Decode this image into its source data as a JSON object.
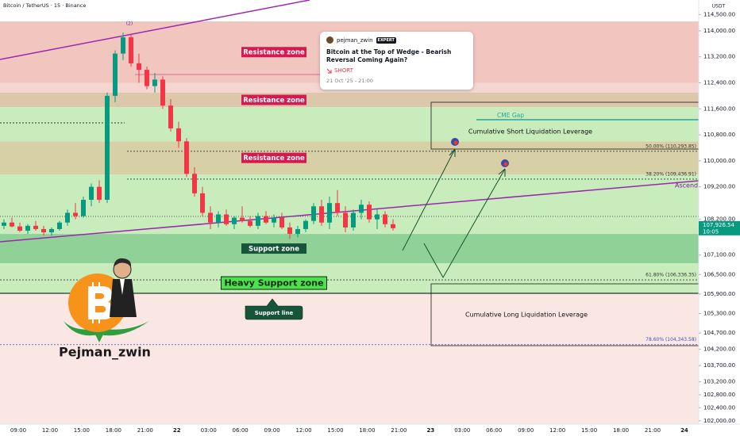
{
  "chart_data": {
    "type": "candlestick",
    "title": "Bitcoin / TetherUS · 15 · Binance",
    "currency": "USDT",
    "ylim": [
      101800,
      114900
    ],
    "yticks": [
      {
        "value": 114500,
        "label": "114,500.00"
      },
      {
        "value": 114000,
        "label": "114,000.00"
      },
      {
        "value": 113200,
        "label": "113,200.00"
      },
      {
        "value": 112400,
        "label": "112,400.00"
      },
      {
        "value": 111600,
        "label": "111,600.00"
      },
      {
        "value": 110800,
        "label": "110,800.00"
      },
      {
        "value": 110000,
        "label": "110,000.00"
      },
      {
        "value": 109200,
        "label": "109,200.00"
      },
      {
        "value": 108200,
        "label": "108,200.00"
      },
      {
        "value": 107100,
        "label": "107,100.00"
      },
      {
        "value": 106500,
        "label": "106,500.00"
      },
      {
        "value": 105900,
        "label": "105,900.00"
      },
      {
        "value": 105300,
        "label": "105,300.00"
      },
      {
        "value": 104700,
        "label": "104,700.00"
      },
      {
        "value": 104200,
        "label": "104,200.00"
      },
      {
        "value": 103700,
        "label": "103,700.00"
      },
      {
        "value": 103200,
        "label": "103,200.00"
      },
      {
        "value": 102800,
        "label": "102,800.00"
      },
      {
        "value": 102400,
        "label": "102,400.00"
      },
      {
        "value": 102000,
        "label": "102,000.00"
      }
    ],
    "time_labels": [
      "09:00",
      "12:00",
      "15:00",
      "18:00",
      "21:00",
      "22",
      "03:00",
      "06:00",
      "09:00",
      "12:00",
      "15:00",
      "18:00",
      "21:00",
      "23",
      "03:00",
      "06:00",
      "09:00",
      "12:00",
      "15:00",
      "18:00",
      "21:00",
      "24"
    ],
    "up_color": "#089981",
    "down_color": "#f23645",
    "candles": [
      [
        108000,
        108200,
        107900,
        108100
      ],
      [
        108100,
        108250,
        107950,
        107980
      ],
      [
        107980,
        108100,
        107800,
        107850
      ],
      [
        107850,
        108050,
        107750,
        108000
      ],
      [
        108000,
        108150,
        107850,
        107900
      ],
      [
        107900,
        108000,
        107700,
        107800
      ],
      [
        107800,
        107950,
        107700,
        107900
      ],
      [
        107900,
        108150,
        107850,
        108100
      ],
      [
        108100,
        108500,
        108000,
        108400
      ],
      [
        108400,
        108700,
        108200,
        108300
      ],
      [
        108300,
        108900,
        108250,
        108800
      ],
      [
        108800,
        109300,
        108600,
        109200
      ],
      [
        109200,
        109400,
        108700,
        108800
      ],
      [
        108800,
        112100,
        108700,
        112000
      ],
      [
        112000,
        113400,
        111800,
        113300
      ],
      [
        113300,
        113950,
        113100,
        113800
      ],
      [
        113800,
        113900,
        112900,
        113000
      ],
      [
        113000,
        113300,
        112400,
        112800
      ],
      [
        112800,
        112900,
        112200,
        112300
      ],
      [
        112300,
        112700,
        112100,
        112500
      ],
      [
        112500,
        112600,
        111600,
        111700
      ],
      [
        111700,
        111900,
        110900,
        111000
      ],
      [
        111000,
        111200,
        110400,
        110600
      ],
      [
        110600,
        110700,
        109500,
        109600
      ],
      [
        109600,
        109800,
        108900,
        109000
      ],
      [
        109000,
        109200,
        108300,
        108400
      ],
      [
        108400,
        108600,
        107900,
        108100
      ],
      [
        108100,
        108450,
        107950,
        108350
      ],
      [
        108350,
        108500,
        108000,
        108050
      ],
      [
        108050,
        108300,
        107900,
        108250
      ],
      [
        108250,
        108600,
        108100,
        108150
      ],
      [
        108150,
        108300,
        107950,
        108000
      ],
      [
        108000,
        108400,
        107900,
        108300
      ],
      [
        108300,
        108450,
        108050,
        108100
      ],
      [
        108100,
        108350,
        107950,
        108250
      ],
      [
        108250,
        108400,
        107900,
        107950
      ],
      [
        107950,
        108100,
        107600,
        107750
      ],
      [
        107750,
        108000,
        107650,
        107900
      ],
      [
        107900,
        108200,
        107800,
        108150
      ],
      [
        108150,
        108700,
        108050,
        108600
      ],
      [
        108600,
        108800,
        108000,
        108100
      ],
      [
        108100,
        108900,
        107900,
        108700
      ],
      [
        108700,
        109100,
        108300,
        108400
      ],
      [
        108400,
        108600,
        107800,
        107950
      ],
      [
        107950,
        108500,
        107850,
        108400
      ],
      [
        108400,
        108800,
        108200,
        108650
      ],
      [
        108650,
        108750,
        108100,
        108200
      ],
      [
        108200,
        108500,
        107900,
        108350
      ],
      [
        108350,
        108450,
        107950,
        108050
      ],
      [
        108050,
        108200,
        107850,
        107926.54
      ]
    ],
    "last_price": {
      "value": 107926.54,
      "label": "107,926.54",
      "countdown": "10:05",
      "color": "#089981"
    },
    "bands": [
      {
        "low": 112400,
        "high": 114290,
        "color": "#f1c6bf",
        "label": "Resistance zone",
        "label_bg": "#d6194f",
        "label_color": "#ffffff"
      },
      {
        "low": 112100,
        "high": 112400,
        "color": "#f5d5cf"
      },
      {
        "low": 111650,
        "high": 112100,
        "color": "#ddc7ab",
        "label": "Resistance zone",
        "label_bg": "#d6194f",
        "label_color": "#ffffff"
      },
      {
        "low": 110600,
        "high": 111650,
        "color": "#c8ecbb"
      },
      {
        "low": 109580,
        "high": 110600,
        "color": "#d7cfa6",
        "label": "Resistance zone",
        "label_bg": "#d6194f",
        "label_color": "#ffffff"
      },
      {
        "low": 107750,
        "high": 109580,
        "color": "#c8ecbb"
      },
      {
        "low": 106850,
        "high": 107750,
        "color": "#8fd196",
        "label": "Support zone",
        "label_bg": "#17553a",
        "label_color": "#ffffff"
      },
      {
        "low": 105920,
        "high": 106850,
        "color": "#c8ecbb",
        "label": "Heavy Support zone",
        "label_bg": "#4fe04f",
        "label_color": "#0b2a0b"
      },
      {
        "low": 101800,
        "high": 105920,
        "color": "#fae7e4"
      }
    ],
    "fib_levels": [
      {
        "value": 110293.85,
        "label": "50.00% (110,293.85)"
      },
      {
        "value": 109436.91,
        "label": "38.20% (109,436.91)"
      },
      {
        "value": 106336.35,
        "label": "61.80% (106,336.35)"
      },
      {
        "value": 104343.58,
        "label": "78.60% (104,343.58)"
      }
    ],
    "boxes": [
      {
        "label": "Cumulative Short Liquidation Leverage",
        "low": 110362,
        "high": 111802
      },
      {
        "label": "Cumulative Long Liquidation Leverage",
        "low": 104312,
        "high": 106215
      }
    ],
    "cme_gap": {
      "label": "CME Gap",
      "value": 111265,
      "color": "#26a69a"
    },
    "annotations": {
      "wave": "(2)",
      "support_line": "Support line",
      "trendline": "Ascend"
    }
  },
  "idea_card": {
    "author": "pejman_zwin",
    "badge": "EXPERT",
    "title": "Bitcoin at the Top of Wedge - Bearish Reversal Coming Again?",
    "direction": "SHORT",
    "date": "21 Oct '25 - 21:00"
  },
  "brand": "Pejman_zwin"
}
